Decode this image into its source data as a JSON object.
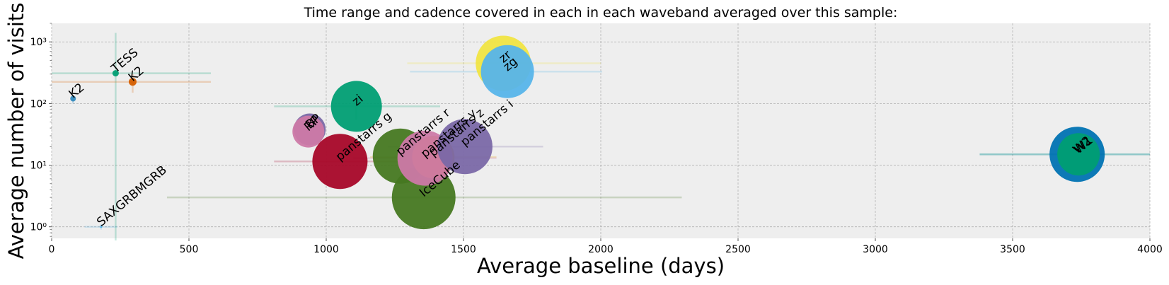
{
  "chart_data": {
    "type": "scatter",
    "title": "Time range and cadence covered in each in each waveband averaged over this sample:",
    "xlabel": "Average baseline (days)",
    "ylabel": "Average number of visits",
    "xlim": [
      0,
      4000
    ],
    "ylim": [
      0.65,
      2000
    ],
    "yscale": "log",
    "grid": true,
    "x_ticks": [
      0,
      500,
      1000,
      1500,
      2000,
      2500,
      3000,
      3500,
      4000
    ],
    "x_tick_labels": [
      "0",
      "500",
      "1000",
      "1500",
      "2000",
      "2500",
      "3000",
      "3500",
      "4000"
    ],
    "y_ticks": [
      1,
      10,
      100,
      1000
    ],
    "y_tick_labels": [
      "10⁰",
      "10¹",
      "10²",
      "10³"
    ],
    "points": [
      {
        "label": "IceCube",
        "x": 1355,
        "y": 3,
        "size": 90,
        "color": "#467821",
        "xerr": [
          420,
          2295
        ],
        "yerr": null
      },
      {
        "label": "SAXGRBMGRB",
        "x": 180,
        "y": 1,
        "size": 3,
        "color": "#56B4E9",
        "xerr": [
          120,
          240
        ],
        "yerr": [
          0.9,
          1.1
        ]
      },
      {
        "label": "TESS",
        "x": 233,
        "y": 310,
        "size": 9,
        "color": "#009E73",
        "xerr": [
          0,
          580
        ],
        "yerr": [
          0.6,
          1400
        ]
      },
      {
        "label": "K2",
        "x": 295,
        "y": 225,
        "size": 11,
        "color": "#D55E00",
        "xerr": [
          0,
          580
        ],
        "yerr": [
          150,
          300
        ]
      },
      {
        "label": "K2",
        "x": 78,
        "y": 120,
        "size": 8,
        "color": "#348ABD",
        "xerr": null,
        "yerr": [
          100,
          135
        ]
      },
      {
        "label": "zi",
        "x": 1110,
        "y": 90,
        "size": 72,
        "color": "#009E73",
        "xerr": [
          810,
          1415
        ],
        "yerr": [
          55,
          110
        ]
      },
      {
        "label": "zr",
        "x": 1645,
        "y": 450,
        "size": 78,
        "color": "#F0E442",
        "xerr": [
          1295,
          2000
        ],
        "yerr": null
      },
      {
        "label": "zg",
        "x": 1660,
        "y": 330,
        "size": 75,
        "color": "#56B4E9",
        "xerr": [
          1305,
          2005
        ],
        "yerr": [
          200,
          420
        ]
      },
      {
        "label": "BP",
        "x": 940,
        "y": 38,
        "size": 45,
        "color": "#7A68A6",
        "xerr": null,
        "yerr": null
      },
      {
        "label": "RP",
        "x": 935,
        "y": 35,
        "size": 45,
        "color": "#CC79A7",
        "xerr": null,
        "yerr": null
      },
      {
        "label": "panstarrs g",
        "x": 1050,
        "y": 11.5,
        "size": 78,
        "color": "#A60628",
        "xerr": [
          810,
          1290
        ],
        "yerr": null
      },
      {
        "label": "panstarrs r",
        "x": 1270,
        "y": 14,
        "size": 78,
        "color": "#467821",
        "xerr": null,
        "yerr": null
      },
      {
        "label": "panstarrs z",
        "x": 1390,
        "y": 13.5,
        "size": 60,
        "color": "#E69F00",
        "xerr": [
          1160,
          1620
        ],
        "yerr": null
      },
      {
        "label": "panstarrs y",
        "x": 1360,
        "y": 13,
        "size": 78,
        "color": "#CC79A7",
        "xerr": [
          1100,
          1620
        ],
        "yerr": null
      },
      {
        "label": "panstarrs i",
        "x": 1505,
        "y": 20,
        "size": 78,
        "color": "#7A68A6",
        "xerr": [
          1225,
          1790
        ],
        "yerr": null
      },
      {
        "label": "W2",
        "x": 3735,
        "y": 15,
        "size": 78,
        "color": "#0072B2",
        "xerr": [
          3380,
          4000
        ],
        "yerr": null
      },
      {
        "label": "W1",
        "x": 3740,
        "y": 15,
        "size": 60,
        "color": "#009E73",
        "xerr": [
          3380,
          4000
        ],
        "yerr": null
      }
    ]
  }
}
